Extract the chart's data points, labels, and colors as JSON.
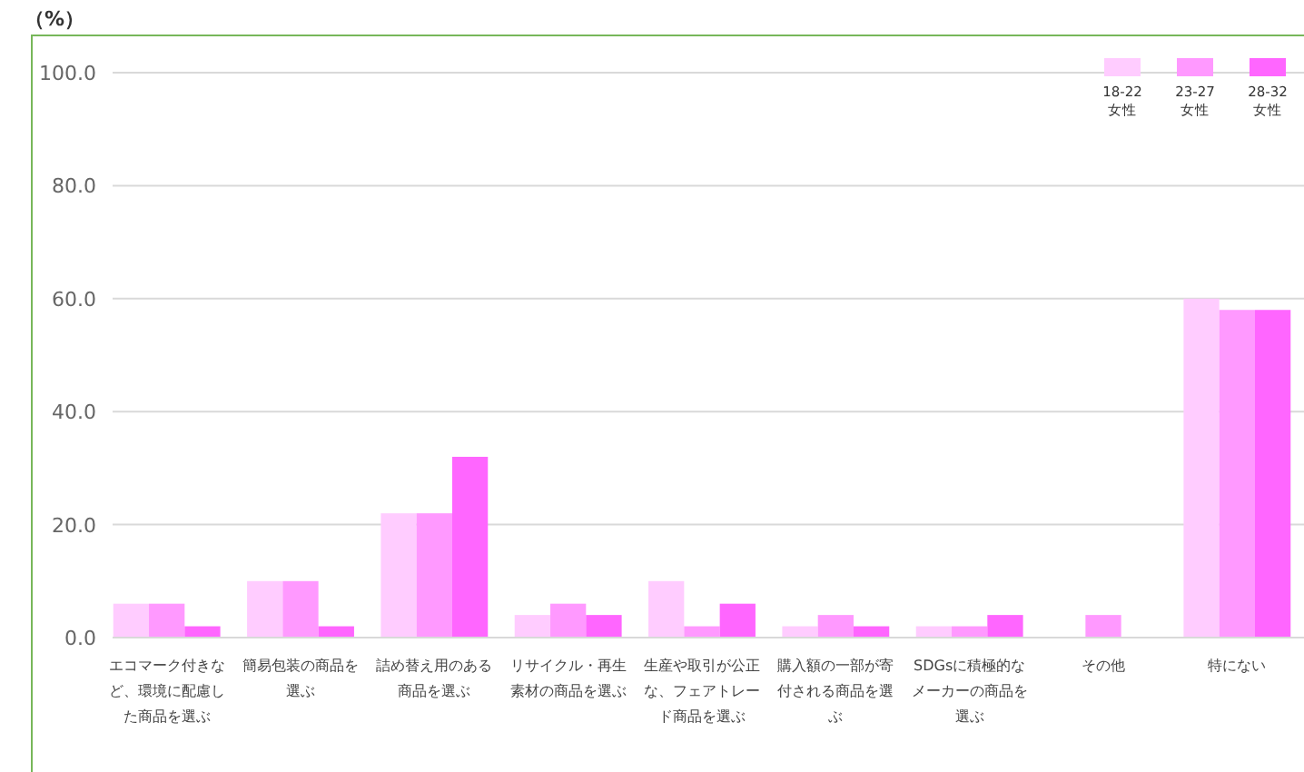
{
  "chart_data": {
    "type": "bar",
    "ylabel": "（%）",
    "categories": [
      "エコマーク付きなど、環境に配慮した商品を選ぶ",
      "簡易包装の商品を選ぶ",
      "詰め替え用のある商品を選ぶ",
      "リサイクル・再生素材の商品を選ぶ",
      "生産や取引が公正な、フェアトレード商品を選ぶ",
      "購入額の一部が寄付される商品を選ぶ",
      "SDGsに積極的なメーカーの商品を選ぶ",
      "その他",
      "特にない"
    ],
    "series": [
      {
        "name": "18-22\n女性",
        "color": "#ffccff",
        "values": [
          6,
          10,
          22,
          4,
          10,
          2,
          2,
          0,
          60
        ]
      },
      {
        "name": "23-27\n女性",
        "color": "#ff99ff",
        "values": [
          6,
          10,
          22,
          6,
          2,
          4,
          2,
          4,
          58
        ]
      },
      {
        "name": "28-32\n女性",
        "color": "#ff66ff",
        "values": [
          2,
          2,
          32,
          4,
          6,
          2,
          4,
          0,
          58
        ]
      }
    ],
    "ylim": [
      0,
      100
    ],
    "yticks": [
      {
        "value": 0,
        "label": "0.0"
      },
      {
        "value": 20,
        "label": "20.0"
      },
      {
        "value": 40,
        "label": "40.0"
      },
      {
        "value": 60,
        "label": "60.0"
      },
      {
        "value": 80,
        "label": "80.0"
      },
      {
        "value": 100,
        "label": "100.0"
      }
    ],
    "grid": "y",
    "legend": "top right"
  }
}
